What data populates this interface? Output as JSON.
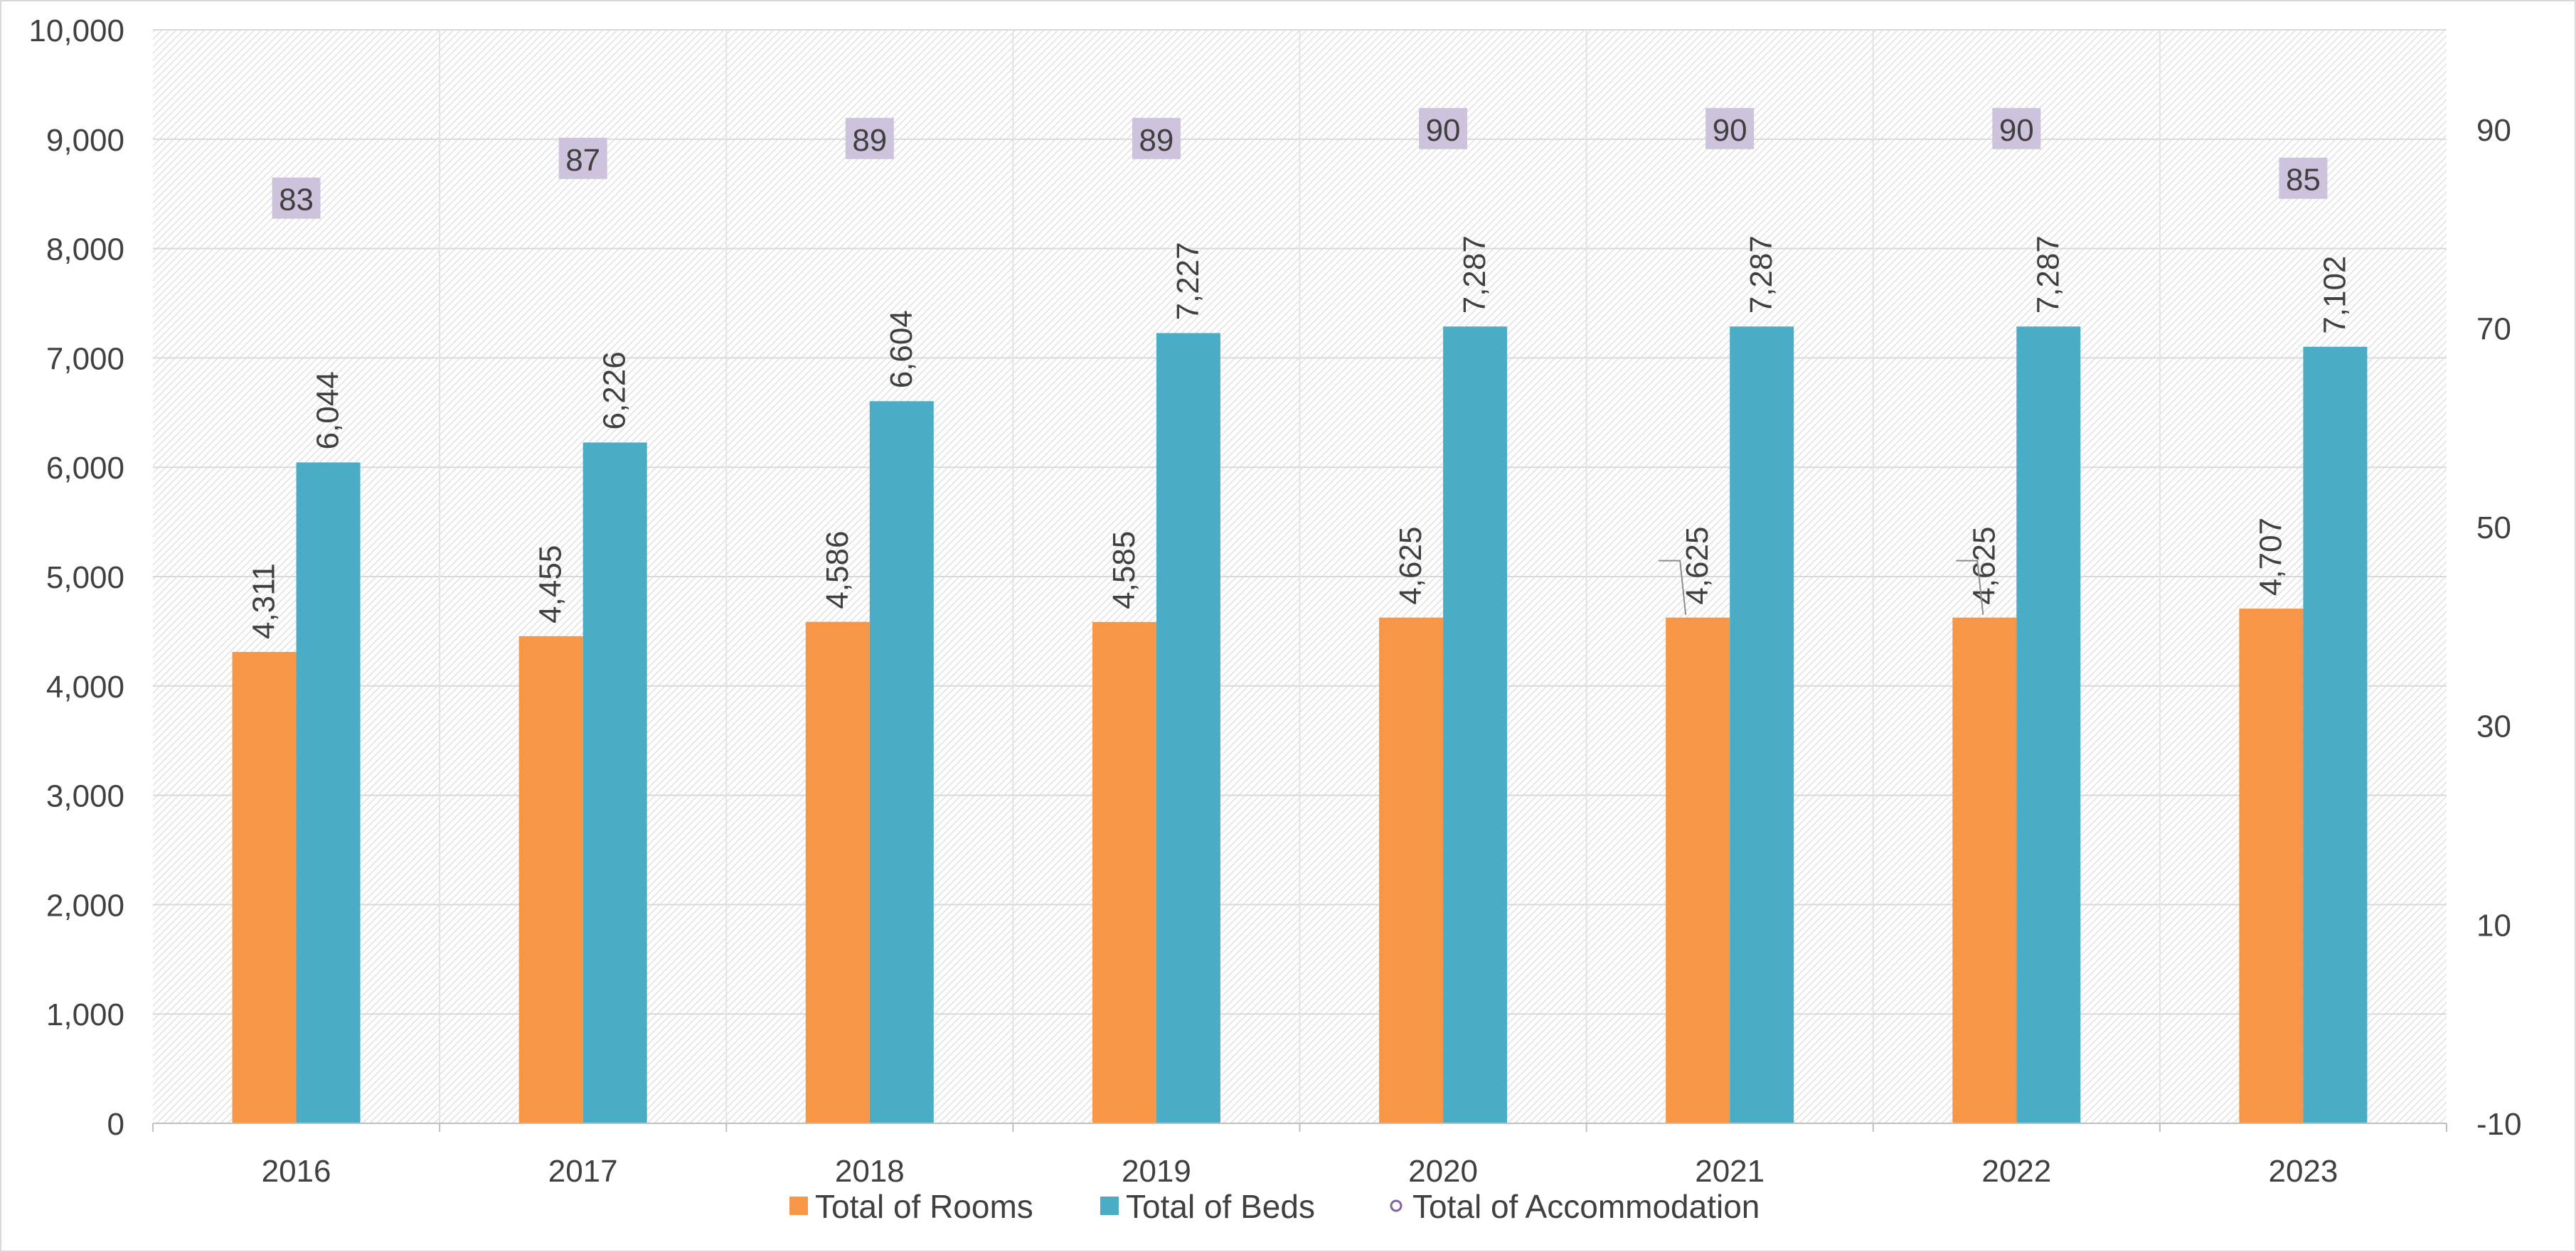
{
  "chart_data": {
    "type": "bar",
    "categories": [
      "2016",
      "2017",
      "2018",
      "2019",
      "2020",
      "2021",
      "2022",
      "2023"
    ],
    "series": [
      {
        "name": "Total of Rooms",
        "axis": "left",
        "color": "#F79646",
        "values": [
          4311,
          4455,
          4586,
          4585,
          4625,
          4625,
          4625,
          4707
        ],
        "labels": [
          "4,311",
          "4,455",
          "4,586",
          "4,585",
          "4,625",
          "4,625",
          "4,625",
          "4,707"
        ]
      },
      {
        "name": "Total of Beds",
        "axis": "left",
        "color": "#4BACC6",
        "values": [
          6044,
          6226,
          6604,
          7227,
          7287,
          7287,
          7287,
          7102
        ],
        "labels": [
          "6,044",
          "6,226",
          "6,604",
          "7,227",
          "7,287",
          "7,287",
          "7,287",
          "7,102"
        ]
      },
      {
        "name": "Total of Accommodation",
        "axis": "right",
        "type": "scatter",
        "color": "#8064A2",
        "label_background": "#CDC3DC",
        "values": [
          83,
          87,
          89,
          89,
          90,
          90,
          90,
          85
        ],
        "labels": [
          "83",
          "87",
          "89",
          "89",
          "90",
          "90",
          "90",
          "85"
        ]
      }
    ],
    "left_axis": {
      "ylim": [
        0,
        10000
      ],
      "ticks": [
        0,
        1000,
        2000,
        3000,
        4000,
        5000,
        6000,
        7000,
        8000,
        9000,
        10000
      ],
      "tick_labels": [
        "0",
        "1,000",
        "2,000",
        "3,000",
        "4,000",
        "5,000",
        "6,000",
        "7,000",
        "8,000",
        "9,000",
        "10,000"
      ]
    },
    "right_axis": {
      "ylim": [
        -10,
        100
      ],
      "ticks": [
        -10,
        10,
        30,
        50,
        70,
        90
      ],
      "tick_labels": [
        "-10",
        "10",
        "30",
        "50",
        "70",
        "90"
      ]
    },
    "grid": true,
    "legend": "bottom-center",
    "title": "",
    "xlabel": "",
    "ylabel": ""
  }
}
